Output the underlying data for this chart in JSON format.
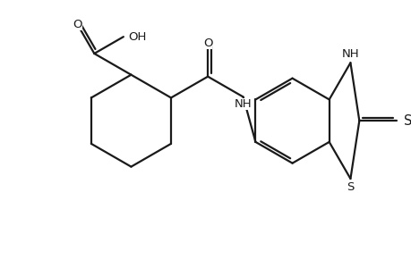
{
  "background_color": "#ffffff",
  "line_color": "#1a1a1a",
  "line_width": 1.6,
  "font_size": 9.5,
  "fig_width": 4.6,
  "fig_height": 3.0,
  "xlim": [
    0,
    4.6
  ],
  "ylim": [
    0,
    3.0
  ]
}
